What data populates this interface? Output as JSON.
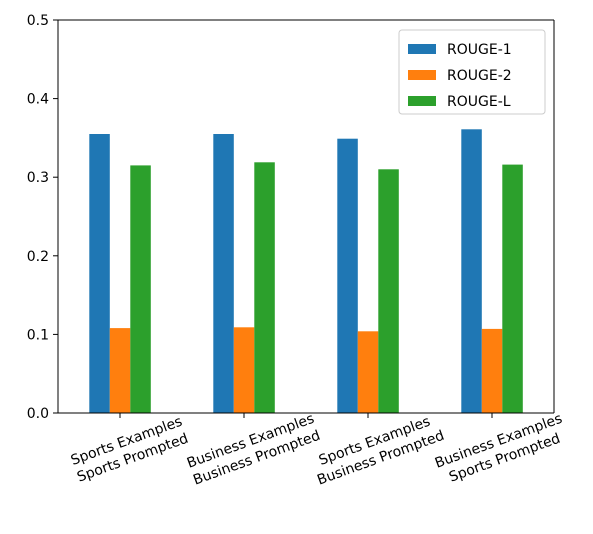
{
  "chart_data": {
    "type": "bar",
    "categories": [
      [
        "Sports Examples",
        "Sports Prompted"
      ],
      [
        "Business Examples",
        "Business Prompted"
      ],
      [
        "Sports Examples",
        "Business Prompted"
      ],
      [
        "Business Examples",
        "Sports Prompted"
      ]
    ],
    "series": [
      {
        "name": "ROUGE-1",
        "color": "#1f77b4",
        "values": [
          0.355,
          0.355,
          0.349,
          0.361
        ]
      },
      {
        "name": "ROUGE-2",
        "color": "#ff7f0e",
        "values": [
          0.108,
          0.109,
          0.104,
          0.107
        ]
      },
      {
        "name": "ROUGE-L",
        "color": "#2ca02c",
        "values": [
          0.315,
          0.319,
          0.31,
          0.316
        ]
      }
    ],
    "ylim": [
      0.0,
      0.5
    ],
    "yticks": [
      "0.0",
      "0.1",
      "0.2",
      "0.3",
      "0.4",
      "0.5"
    ],
    "ytick_values": [
      0.0,
      0.1,
      0.2,
      0.3,
      0.4,
      0.5
    ],
    "legend_position": "top-right",
    "grid": false
  }
}
